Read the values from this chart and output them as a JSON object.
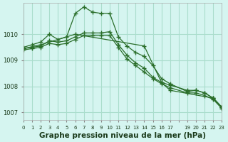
{
  "background_color": "#d5f5f0",
  "grid_color": "#aaddcc",
  "line_color": "#2a6e2a",
  "marker_color": "#2a6e2a",
  "xlabel": "Graphe pression niveau de la mer (hPa)",
  "xlabel_fontsize": 7.5,
  "xlim": [
    0,
    23
  ],
  "ylim": [
    1006.7,
    1011.2
  ],
  "yticks": [
    1007,
    1008,
    1009,
    1010
  ],
  "xticks": [
    0,
    1,
    2,
    3,
    4,
    5,
    6,
    7,
    8,
    9,
    10,
    11,
    12,
    13,
    14,
    15,
    16,
    17,
    18,
    19,
    20,
    21,
    22,
    23
  ],
  "xtick_labels": [
    "0",
    "1",
    "2",
    "3",
    "4",
    "5",
    "6",
    "7",
    "8",
    "9",
    "10",
    "11",
    "12",
    "13",
    "14",
    "15",
    "16",
    "17",
    "",
    "19",
    "20",
    "21",
    "22",
    "23"
  ],
  "series": [
    {
      "x": [
        0,
        1,
        2,
        3,
        4,
        5,
        6,
        7,
        8,
        9,
        10,
        11,
        12,
        13,
        14,
        15,
        16,
        17,
        19,
        20,
        21,
        22,
        23
      ],
      "y": [
        1009.5,
        1009.6,
        1009.7,
        1010.0,
        1009.8,
        1009.9,
        1010.8,
        1011.05,
        1010.85,
        1010.8,
        1010.8,
        1009.9,
        1009.55,
        1009.3,
        1009.15,
        1008.8,
        1008.3,
        1008.1,
        1007.8,
        1007.85,
        1007.75,
        1007.55,
        1007.2
      ]
    },
    {
      "x": [
        0,
        1,
        2,
        3,
        4,
        5,
        6,
        7,
        8,
        9,
        10,
        11,
        12,
        13,
        14,
        15,
        16,
        17,
        19,
        20,
        21,
        22,
        23
      ],
      "y": [
        1009.45,
        1009.5,
        1009.55,
        1009.75,
        1009.7,
        1009.75,
        1009.9,
        1010.05,
        1010.05,
        1010.05,
        1010.1,
        1009.6,
        1009.2,
        1008.9,
        1008.7,
        1008.35,
        1008.15,
        1008.05,
        1007.85,
        1007.85,
        1007.75,
        1007.55,
        1007.2
      ]
    },
    {
      "x": [
        0,
        1,
        2,
        3,
        4,
        5,
        6,
        7,
        8,
        9,
        10,
        11,
        12,
        13,
        14,
        15,
        16,
        17,
        19,
        20,
        21,
        22,
        23
      ],
      "y": [
        1009.4,
        1009.45,
        1009.5,
        1009.65,
        1009.6,
        1009.65,
        1009.8,
        1009.95,
        1009.95,
        1009.95,
        1009.95,
        1009.5,
        1009.05,
        1008.8,
        1008.55,
        1008.3,
        1008.1,
        1007.95,
        1007.75,
        1007.75,
        1007.65,
        1007.5,
        1007.15
      ]
    },
    {
      "x": [
        0,
        2,
        6,
        14,
        16,
        17,
        22,
        23
      ],
      "y": [
        1009.45,
        1009.6,
        1010.0,
        1009.55,
        1008.15,
        1007.85,
        1007.55,
        1007.2
      ]
    }
  ]
}
